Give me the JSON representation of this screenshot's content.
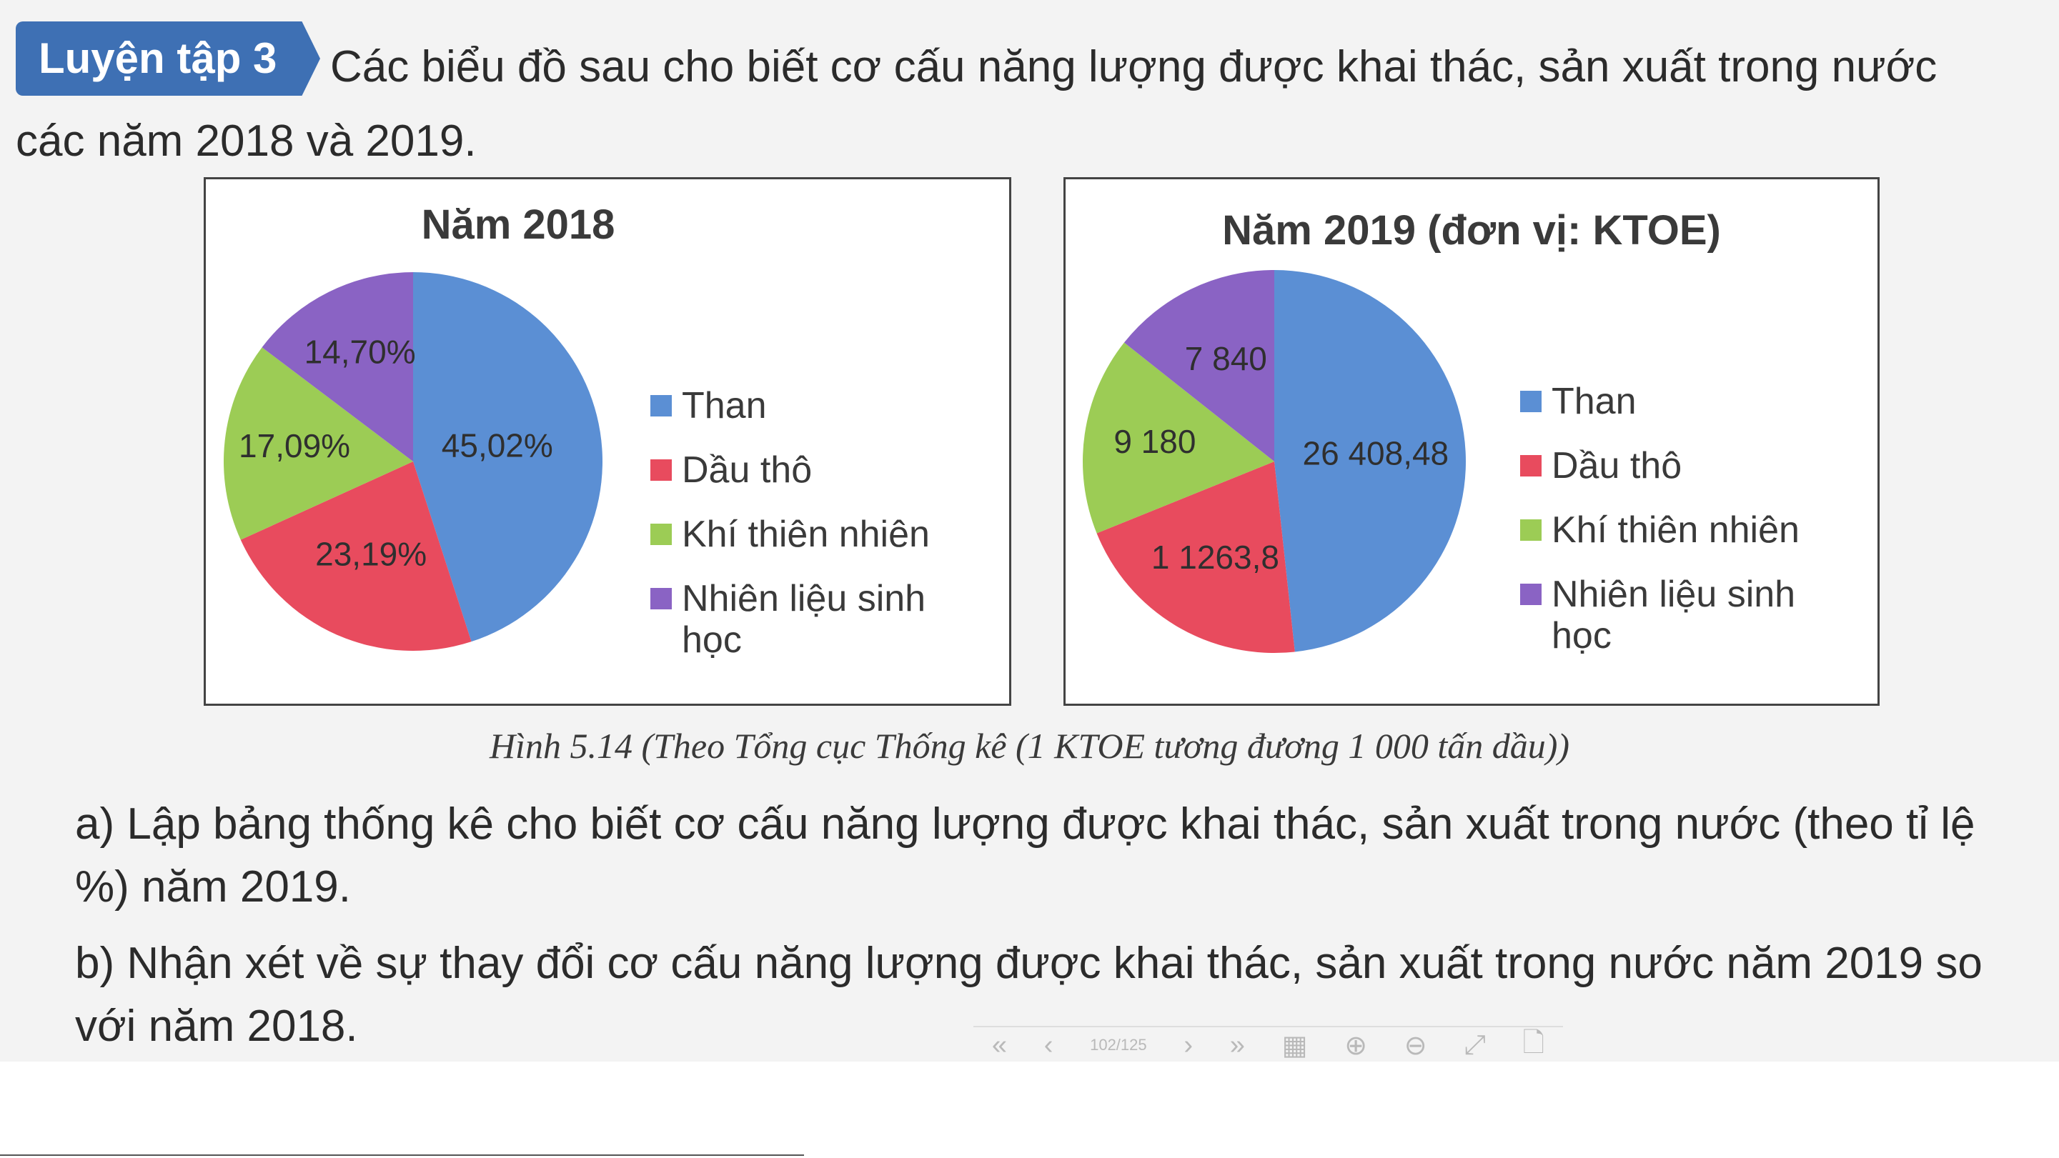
{
  "header": {
    "badge_label": "Luyện tập 3",
    "intro_text": "Các biểu đồ sau cho biết cơ cấu năng lượng được khai thác, sản xuất trong nước các năm 2018 và 2019."
  },
  "chart_data": [
    {
      "type": "pie",
      "title": "Năm 2018",
      "categories": [
        "Than",
        "Dầu thô",
        "Khí thiên nhiên",
        "Nhiên liệu sinh học"
      ],
      "values": [
        45.02,
        23.19,
        17.09,
        14.7
      ],
      "data_labels": [
        "45,02%",
        "23,19%",
        "17,09%",
        "14,70%"
      ],
      "colors": [
        "#5b8fd4",
        "#e84b5e",
        "#9ccc55",
        "#8a63c4"
      ],
      "legend_position": "right"
    },
    {
      "type": "pie",
      "title": "Năm 2019 (đơn vị: KTOE)",
      "categories": [
        "Than",
        "Dầu thô",
        "Khí thiên nhiên",
        "Nhiên liệu sinh học"
      ],
      "values": [
        26408.48,
        11263.8,
        9180,
        7840
      ],
      "data_labels": [
        "26 408,48",
        "1 1263,8",
        "9 180",
        "7 840"
      ],
      "colors": [
        "#5b8fd4",
        "#e84b5e",
        "#9ccc55",
        "#8a63c4"
      ],
      "legend_position": "right"
    }
  ],
  "caption": "Hình 5.14 (Theo Tổng cục Thống kê (1 KTOE tương đương 1 000 tấn dầu))",
  "questions": {
    "a": "a) Lập bảng thống kê cho biết cơ cấu năng lượng được khai thác, sản xuất trong nước (theo tỉ lệ %) năm 2019.",
    "b": "b) Nhận xét về sự thay đổi cơ cấu năng lượng được khai thác, sản xuất trong nước năm 2019 so với năm 2018."
  },
  "toolbar": {
    "first_icon": "«",
    "prev_icon": "‹",
    "page_label": "102/125",
    "next_icon": "›",
    "last_icon": "»",
    "grid_icon": "▦",
    "zoom_in_icon": "⊕",
    "zoom_out_icon": "⊖",
    "fullscreen_icon": "⤢",
    "download_icon": "🗋"
  }
}
